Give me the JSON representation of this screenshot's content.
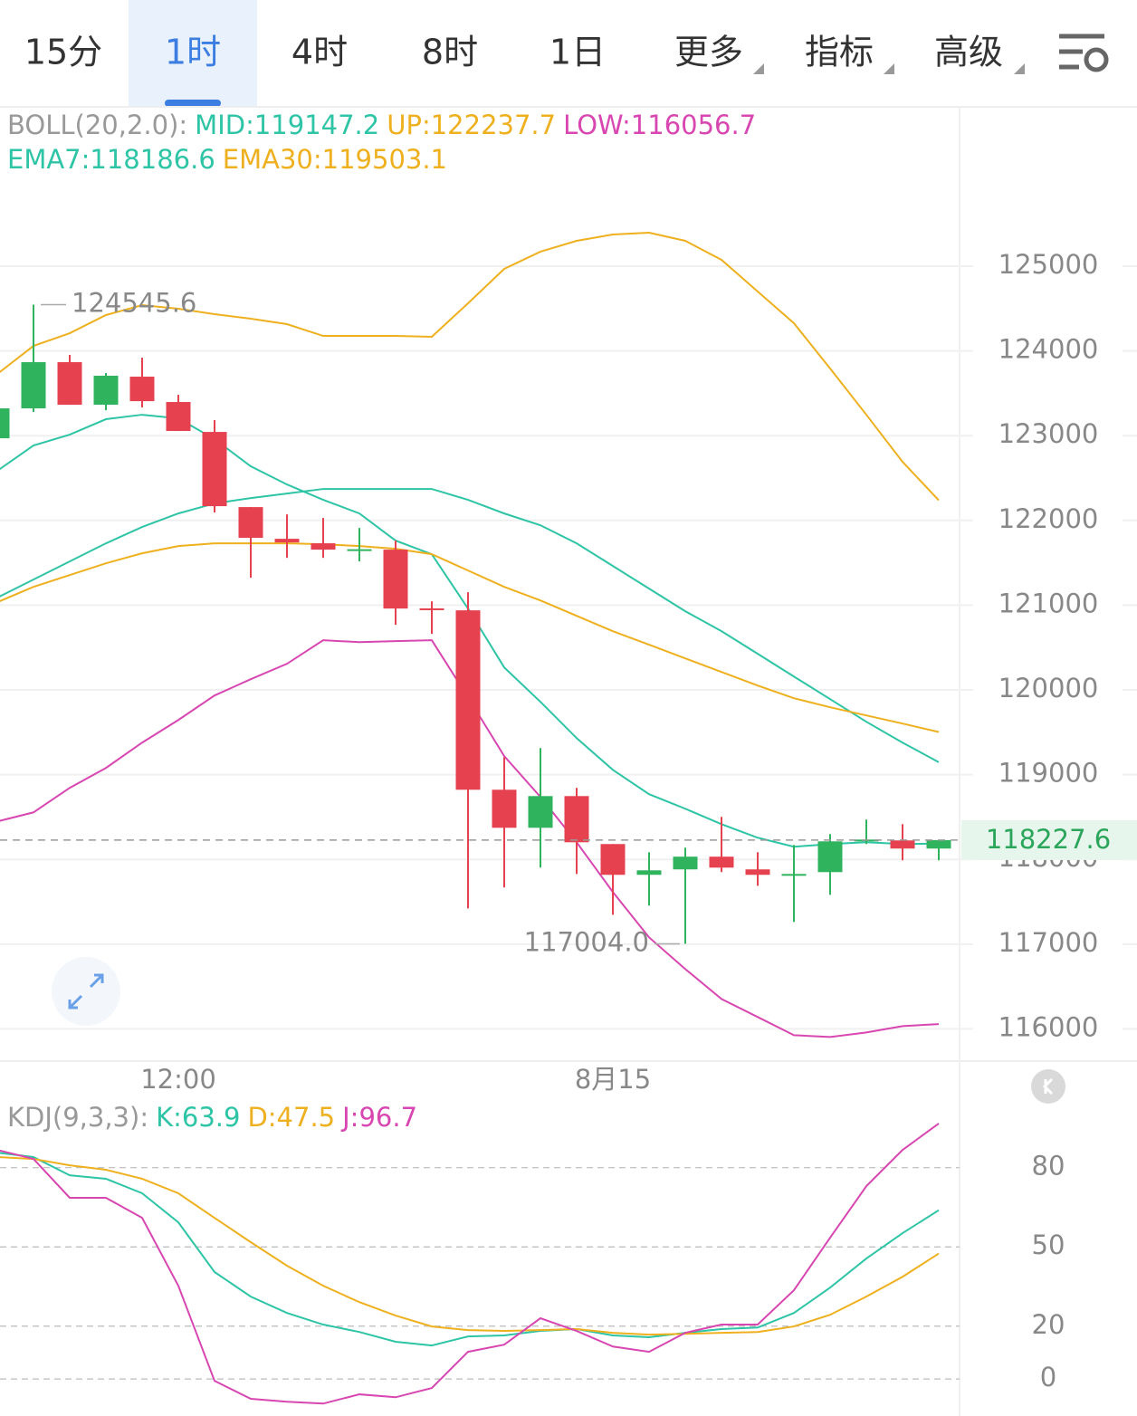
{
  "tabs": [
    {
      "label": "15分"
    },
    {
      "label": "1时",
      "active": true
    },
    {
      "label": "4时"
    },
    {
      "label": "8时"
    },
    {
      "label": "1日"
    },
    {
      "label": "更多",
      "dropdown": true
    },
    {
      "label": "指标",
      "dropdown": true
    },
    {
      "label": "高级",
      "dropdown": true
    }
  ],
  "chart_data": [
    {
      "type": "candlestick",
      "indicator": "BOLL(20,2.0):",
      "categories": [
        null,
        null,
        null,
        null,
        null,
        "12:00",
        null,
        null,
        null,
        null,
        null,
        null,
        null,
        null,
        null,
        null,
        null,
        "8月15",
        null,
        null,
        null,
        null,
        null,
        null,
        null,
        null,
        null
      ],
      "open": [
        122969,
        123322,
        123867,
        123365,
        123696,
        123397,
        123044,
        122157,
        121783,
        121730,
        121650,
        121655,
        120962,
        120939,
        118822,
        118373,
        118747,
        118181,
        117818,
        117882,
        118032,
        117882,
        117818,
        117850,
        118224,
        118224,
        118128
      ],
      "high": [
        123400,
        124545.6,
        123953,
        123739,
        123920,
        123482,
        123183,
        122157,
        122071,
        122029,
        121911,
        121762,
        121045,
        121152,
        119207,
        119314,
        118844,
        118181,
        118085,
        118138,
        118502,
        118085,
        118170,
        118299,
        118470,
        118416,
        118234
      ],
      "low": [
        122900,
        123279,
        123365,
        123300,
        123333,
        123055,
        122093,
        121323,
        121558,
        121558,
        121516,
        120768,
        120661,
        117422,
        117668,
        117903,
        117828,
        117347,
        117454,
        117004.0,
        117850,
        117689,
        117262,
        117582,
        118181,
        117989,
        117989
      ],
      "close": [
        123322,
        123867,
        123365,
        123707,
        123407,
        123055,
        122168,
        121794,
        121740,
        121655,
        121660,
        120960,
        120955,
        118822,
        118373,
        118747,
        118202,
        117818,
        117871,
        118032,
        117903,
        117818,
        117828,
        118213,
        118234,
        118128,
        118227.6
      ],
      "up_color": "#2fb35c",
      "down_color": "#e6414f",
      "series": [
        {
          "name": "MID:119147.2",
          "color": "#2ec4a6",
          "values": [
            121088,
            121302,
            121516,
            121729,
            121922,
            122082,
            122200,
            122264,
            122317,
            122371,
            122371,
            122371,
            122371,
            122243,
            122082,
            121943,
            121729,
            121462,
            121195,
            120928,
            120693,
            120426,
            120158,
            119891,
            119624,
            119378,
            119147.2
          ]
        },
        {
          "name": "UP:122237.7",
          "color": "#eeb01e",
          "values": [
            123728,
            124059,
            124209,
            124423,
            124540,
            124498,
            124434,
            124380,
            124316,
            124177,
            124177,
            124177,
            124166,
            124562,
            124968,
            125171,
            125299,
            125374,
            125395,
            125299,
            125075,
            124701,
            124327,
            123792,
            123247,
            122691,
            122237.7
          ]
        },
        {
          "name": "LOW:116056.7",
          "color": "#d847b1",
          "values": [
            118448,
            118555,
            118844,
            119079,
            119378,
            119645,
            119934,
            120126,
            120308,
            120586,
            120564,
            120575,
            120586,
            119912,
            119218,
            118737,
            118202,
            117615,
            117080,
            116706,
            116353,
            116140,
            115926,
            115904,
            115958,
            116033,
            116056.7
          ]
        },
        {
          "name": "EMA7:118186.6",
          "color": "#2ec4a6",
          "values": [
            122585,
            122884,
            123012,
            123194,
            123247,
            123204,
            122959,
            122638,
            122424,
            122243,
            122082,
            121762,
            121601,
            120960,
            120265,
            119859,
            119431,
            119057,
            118769,
            118598,
            118416,
            118256,
            118149,
            118181,
            118202,
            118181,
            118186.6
          ]
        },
        {
          "name": "EMA30:119503.1",
          "color": "#eeb01e",
          "values": [
            121035,
            121216,
            121355,
            121494,
            121612,
            121697,
            121730,
            121730,
            121730,
            121719,
            121697,
            121665,
            121601,
            121409,
            121216,
            121056,
            120874,
            120693,
            120533,
            120372,
            120212,
            120051,
            119902,
            119795,
            119699,
            119603,
            119503.1
          ]
        }
      ],
      "ylim": [
        115620,
        126880
      ],
      "yticks": [
        116000,
        117000,
        118000,
        119000,
        120000,
        121000,
        122000,
        123000,
        124000,
        125000
      ],
      "grid": true,
      "max_label": "124545.6",
      "min_label": "117004.0",
      "last_price_label": "118227.6"
    },
    {
      "type": "line",
      "indicator": "KDJ(9,3,3):",
      "series": [
        {
          "name": "K:63.9",
          "color": "#2ec4a6",
          "values": [
            85.7,
            84.0,
            77.1,
            75.8,
            70.3,
            59.3,
            40.5,
            31.2,
            25.0,
            20.6,
            17.8,
            14.1,
            12.7,
            16.1,
            16.5,
            18.2,
            18.9,
            16.5,
            15.8,
            17.5,
            18.9,
            19.5,
            25.0,
            34.6,
            45.6,
            55.2,
            63.9
          ]
        },
        {
          "name": "D:47.5",
          "color": "#eeb01e",
          "values": [
            84.0,
            83.3,
            80.9,
            79.2,
            75.8,
            70.3,
            61.0,
            51.8,
            42.9,
            35.3,
            29.1,
            24.0,
            19.9,
            18.5,
            18.2,
            18.5,
            18.9,
            17.5,
            16.8,
            17.1,
            17.5,
            17.8,
            19.9,
            24.3,
            31.2,
            38.7,
            47.5
          ]
        },
        {
          "name": "J:96.7",
          "color": "#d847b1",
          "values": [
            86.7,
            83.3,
            68.6,
            68.6,
            61.0,
            35.3,
            -0.7,
            -7.5,
            -8.6,
            -9.3,
            -5.8,
            -6.9,
            -3.4,
            10.3,
            13.0,
            23.0,
            18.2,
            12.3,
            10.3,
            17.5,
            20.6,
            20.6,
            33.6,
            53.5,
            73.0,
            86.7,
            96.7
          ]
        }
      ],
      "ylim": [
        -14,
        105.6
      ],
      "yticks": [
        80,
        50,
        20,
        0
      ],
      "grid": true
    }
  ]
}
